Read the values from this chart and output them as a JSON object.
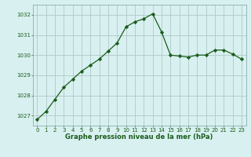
{
  "x": [
    0,
    1,
    2,
    3,
    4,
    5,
    6,
    7,
    8,
    9,
    10,
    11,
    12,
    13,
    14,
    15,
    16,
    17,
    18,
    19,
    20,
    21,
    22,
    23
  ],
  "y": [
    1026.8,
    1027.2,
    1027.8,
    1028.4,
    1028.8,
    1029.2,
    1029.5,
    1029.8,
    1030.2,
    1030.6,
    1031.4,
    1031.65,
    1031.8,
    1032.05,
    1031.15,
    1030.0,
    1029.95,
    1029.9,
    1030.0,
    1030.0,
    1030.25,
    1030.25,
    1030.05,
    1029.8
  ],
  "line_color": "#1a5c1a",
  "marker": "D",
  "marker_size": 2.2,
  "bg_color": "#d8f0f0",
  "grid_color": "#b0c8c8",
  "xlabel": "Graphe pression niveau de la mer (hPa)",
  "xlabel_color": "#1a5c1a",
  "tick_color": "#1a5c1a",
  "ylim": [
    1026.5,
    1032.5
  ],
  "yticks": [
    1027,
    1028,
    1029,
    1030,
    1031,
    1032
  ],
  "xticks": [
    0,
    1,
    2,
    3,
    4,
    5,
    6,
    7,
    8,
    9,
    10,
    11,
    12,
    13,
    14,
    15,
    16,
    17,
    18,
    19,
    20,
    21,
    22,
    23
  ],
  "xlim": [
    -0.5,
    23.5
  ],
  "border_color": "#8ab0b0",
  "xlabel_fontsize": 6.0,
  "tick_fontsize": 5.0,
  "linewidth": 0.9
}
